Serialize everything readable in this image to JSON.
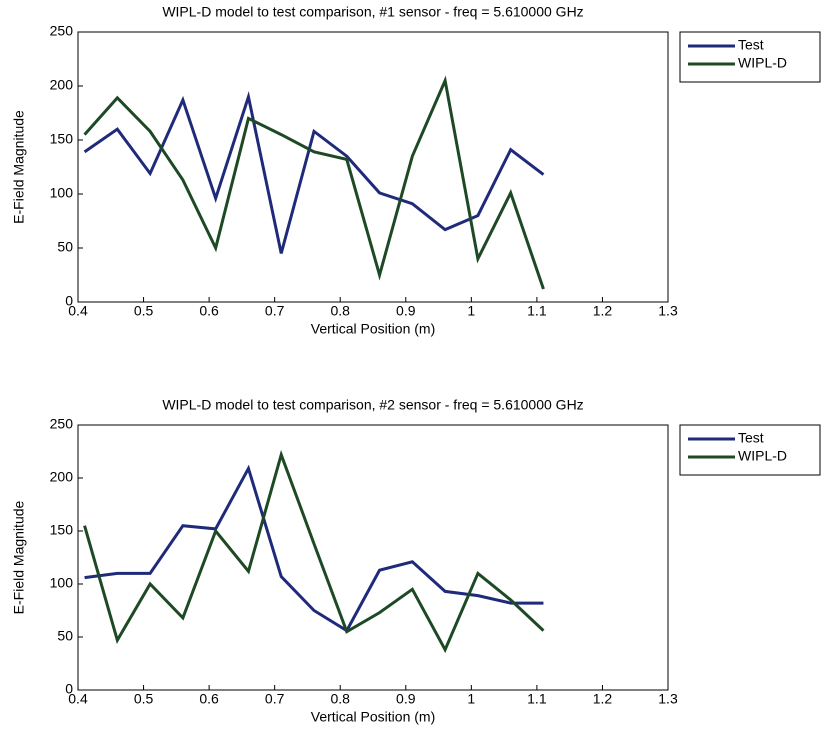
{
  "chart_data": [
    {
      "type": "line",
      "title": "WIPL-D model to test comparison, #1 sensor - freq = 5.610000 GHz",
      "x_label": "Vertical Position (m)",
      "y_label": "E-Field Magnitude",
      "x": [
        0.41,
        0.46,
        0.51,
        0.56,
        0.61,
        0.66,
        0.71,
        0.76,
        0.81,
        0.86,
        0.91,
        0.96,
        1.01,
        1.06,
        1.11
      ],
      "series": [
        {
          "name": "Test",
          "color": "#1f2a7a",
          "values": [
            139,
            160,
            119,
            187,
            96,
            190,
            45,
            158,
            135,
            101,
            91,
            67,
            80,
            141,
            118
          ]
        },
        {
          "name": "WIPL-D",
          "color": "#1d4a25",
          "values": [
            155,
            189,
            158,
            113,
            50,
            170,
            155,
            139,
            132,
            25,
            135,
            205,
            40,
            101,
            12
          ]
        }
      ],
      "xlim": [
        0.4,
        1.3
      ],
      "xticks": [
        0.4,
        0.5,
        0.6,
        0.7,
        0.8,
        0.9,
        1,
        1.1,
        1.2,
        1.3
      ],
      "ylim": [
        0,
        250
      ],
      "yticks": [
        0,
        50,
        100,
        150,
        200,
        250
      ],
      "legend": "outside-upper-right"
    },
    {
      "type": "line",
      "title": "WIPL-D model to test comparison, #2 sensor - freq = 5.610000 GHz",
      "x_label": "Vertical Position (m)",
      "y_label": "E-Field Magnitude",
      "x": [
        0.41,
        0.46,
        0.51,
        0.56,
        0.61,
        0.66,
        0.71,
        0.76,
        0.81,
        0.86,
        0.91,
        0.96,
        1.01,
        1.06,
        1.11
      ],
      "series": [
        {
          "name": "Test",
          "color": "#1f2a7a",
          "values": [
            106,
            110,
            110,
            155,
            152,
            209,
            107,
            75,
            56,
            113,
            121,
            93,
            89,
            82,
            82
          ]
        },
        {
          "name": "WIPL-D",
          "color": "#1d4a25",
          "values": [
            155,
            47,
            100,
            68,
            150,
            112,
            222,
            138,
            55,
            73,
            95,
            38,
            110,
            85,
            56
          ]
        }
      ],
      "xlim": [
        0.4,
        1.3
      ],
      "xticks": [
        0.4,
        0.5,
        0.6,
        0.7,
        0.8,
        0.9,
        1,
        1.1,
        1.2,
        1.3
      ],
      "ylim": [
        0,
        250
      ],
      "yticks": [
        0,
        50,
        100,
        150,
        200,
        250
      ],
      "legend": "outside-upper-right"
    }
  ]
}
